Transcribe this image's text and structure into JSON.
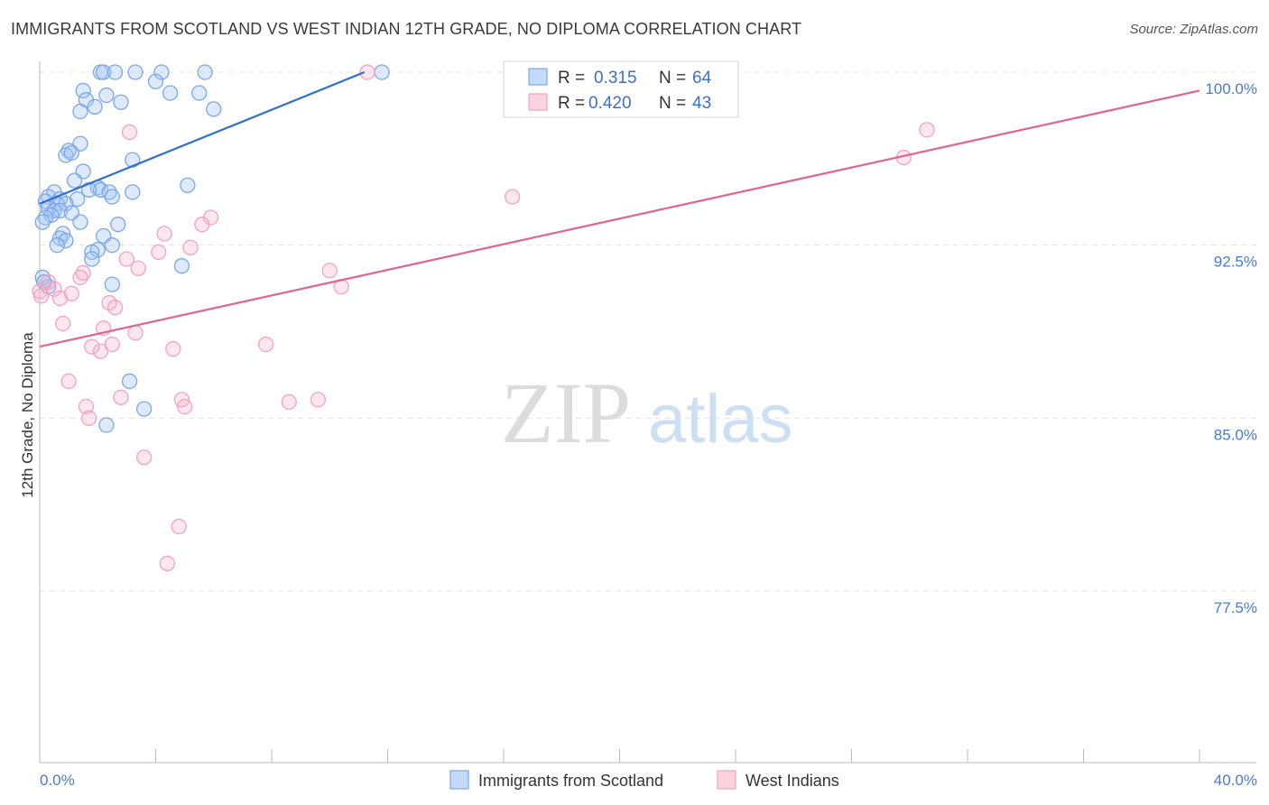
{
  "title": "IMMIGRANTS FROM SCOTLAND VS WEST INDIAN 12TH GRADE, NO DIPLOMA CORRELATION CHART",
  "source": "Source: ZipAtlas.com",
  "watermark": {
    "zip": "ZIP",
    "atlas": "atlas"
  },
  "legend": {
    "rows": [
      {
        "r_label": "R =",
        "r_value": "0.315",
        "n_label": "N =",
        "n_value": "64"
      },
      {
        "r_label": "R =",
        "r_value": "0.420",
        "n_label": "N =",
        "n_value": "43"
      }
    ]
  },
  "chart_data": {
    "type": "scatter",
    "xlabel": "",
    "ylabel": "12th Grade, No Diploma",
    "x_tick_labels": [
      "0.0%",
      "40.0%"
    ],
    "y_tick_labels": [
      "100.0%",
      "92.5%",
      "85.0%",
      "77.5%"
    ],
    "y_ticks": [
      100.0,
      92.5,
      85.0,
      77.5
    ],
    "xlim": [
      0,
      40
    ],
    "ylim": [
      70.5,
      100.5
    ],
    "grid": true,
    "legend_position": "bottom",
    "series": [
      {
        "name": "Immigrants from Scotland",
        "color": "#7aa8e8",
        "line_color": "#2f6fd0",
        "trend": {
          "x": [
            0.0,
            11.2
          ],
          "y": [
            94.3,
            100.0
          ]
        },
        "points": [
          {
            "x": 2.1,
            "y": 100.0
          },
          {
            "x": 2.2,
            "y": 100.0
          },
          {
            "x": 2.6,
            "y": 100.0
          },
          {
            "x": 3.3,
            "y": 100.0
          },
          {
            "x": 4.2,
            "y": 100.0
          },
          {
            "x": 5.7,
            "y": 100.0
          },
          {
            "x": 11.8,
            "y": 100.0
          },
          {
            "x": 4.0,
            "y": 99.6
          },
          {
            "x": 1.5,
            "y": 99.2
          },
          {
            "x": 4.5,
            "y": 99.1
          },
          {
            "x": 5.5,
            "y": 99.1
          },
          {
            "x": 2.3,
            "y": 99.0
          },
          {
            "x": 1.6,
            "y": 98.8
          },
          {
            "x": 2.8,
            "y": 98.7
          },
          {
            "x": 1.9,
            "y": 98.5
          },
          {
            "x": 1.4,
            "y": 98.3
          },
          {
            "x": 6.0,
            "y": 98.4
          },
          {
            "x": 1.4,
            "y": 96.9
          },
          {
            "x": 1.0,
            "y": 96.6
          },
          {
            "x": 0.9,
            "y": 96.4
          },
          {
            "x": 1.1,
            "y": 96.5
          },
          {
            "x": 3.2,
            "y": 96.2
          },
          {
            "x": 1.5,
            "y": 95.7
          },
          {
            "x": 1.2,
            "y": 95.3
          },
          {
            "x": 5.1,
            "y": 95.1
          },
          {
            "x": 2.0,
            "y": 95.0
          },
          {
            "x": 2.1,
            "y": 94.9
          },
          {
            "x": 1.7,
            "y": 94.9
          },
          {
            "x": 2.4,
            "y": 94.8
          },
          {
            "x": 3.2,
            "y": 94.8
          },
          {
            "x": 0.5,
            "y": 94.8
          },
          {
            "x": 0.3,
            "y": 94.6
          },
          {
            "x": 0.7,
            "y": 94.5
          },
          {
            "x": 1.3,
            "y": 94.5
          },
          {
            "x": 2.5,
            "y": 94.6
          },
          {
            "x": 0.2,
            "y": 94.4
          },
          {
            "x": 0.6,
            "y": 94.3
          },
          {
            "x": 0.9,
            "y": 94.3
          },
          {
            "x": 0.3,
            "y": 94.1
          },
          {
            "x": 0.5,
            "y": 94.0
          },
          {
            "x": 0.7,
            "y": 94.0
          },
          {
            "x": 0.4,
            "y": 93.8
          },
          {
            "x": 1.1,
            "y": 93.9
          },
          {
            "x": 0.2,
            "y": 93.7
          },
          {
            "x": 1.4,
            "y": 93.5
          },
          {
            "x": 0.1,
            "y": 93.5
          },
          {
            "x": 2.7,
            "y": 93.4
          },
          {
            "x": 0.8,
            "y": 93.0
          },
          {
            "x": 0.7,
            "y": 92.8
          },
          {
            "x": 2.2,
            "y": 92.9
          },
          {
            "x": 0.9,
            "y": 92.7
          },
          {
            "x": 2.5,
            "y": 92.5
          },
          {
            "x": 0.6,
            "y": 92.5
          },
          {
            "x": 2.0,
            "y": 92.3
          },
          {
            "x": 1.8,
            "y": 92.2
          },
          {
            "x": 1.8,
            "y": 91.9
          },
          {
            "x": 4.9,
            "y": 91.6
          },
          {
            "x": 2.5,
            "y": 90.8
          },
          {
            "x": 0.3,
            "y": 90.7
          },
          {
            "x": 3.1,
            "y": 86.6
          },
          {
            "x": 3.6,
            "y": 85.4
          },
          {
            "x": 2.3,
            "y": 84.7
          },
          {
            "x": 0.1,
            "y": 91.1
          },
          {
            "x": 0.15,
            "y": 90.9
          }
        ]
      },
      {
        "name": "West Indians",
        "color": "#f3a3bd",
        "line_color": "#e0648f",
        "trend": {
          "x": [
            0.0,
            40.0
          ],
          "y": [
            88.1,
            99.2
          ]
        },
        "points": [
          {
            "x": 11.3,
            "y": 100.0
          },
          {
            "x": 30.6,
            "y": 97.5
          },
          {
            "x": 3.1,
            "y": 97.4
          },
          {
            "x": 29.8,
            "y": 96.3
          },
          {
            "x": 16.3,
            "y": 94.6
          },
          {
            "x": 5.9,
            "y": 93.7
          },
          {
            "x": 5.6,
            "y": 93.4
          },
          {
            "x": 4.3,
            "y": 93.0
          },
          {
            "x": 5.2,
            "y": 92.4
          },
          {
            "x": 4.1,
            "y": 92.2
          },
          {
            "x": 3.0,
            "y": 91.9
          },
          {
            "x": 3.4,
            "y": 91.5
          },
          {
            "x": 10.0,
            "y": 91.4
          },
          {
            "x": 1.5,
            "y": 91.3
          },
          {
            "x": 1.4,
            "y": 91.1
          },
          {
            "x": 0.3,
            "y": 90.9
          },
          {
            "x": 10.4,
            "y": 90.7
          },
          {
            "x": 0.5,
            "y": 90.6
          },
          {
            "x": 0.0,
            "y": 90.5
          },
          {
            "x": 1.1,
            "y": 90.4
          },
          {
            "x": 0.7,
            "y": 90.2
          },
          {
            "x": 2.4,
            "y": 90.0
          },
          {
            "x": 2.6,
            "y": 89.8
          },
          {
            "x": 0.8,
            "y": 89.1
          },
          {
            "x": 2.2,
            "y": 88.9
          },
          {
            "x": 3.3,
            "y": 88.7
          },
          {
            "x": 2.5,
            "y": 88.2
          },
          {
            "x": 7.8,
            "y": 88.2
          },
          {
            "x": 1.8,
            "y": 88.1
          },
          {
            "x": 4.6,
            "y": 88.0
          },
          {
            "x": 2.1,
            "y": 87.9
          },
          {
            "x": 1.0,
            "y": 86.6
          },
          {
            "x": 2.8,
            "y": 85.9
          },
          {
            "x": 4.9,
            "y": 85.8
          },
          {
            "x": 9.6,
            "y": 85.8
          },
          {
            "x": 8.6,
            "y": 85.7
          },
          {
            "x": 1.6,
            "y": 85.5
          },
          {
            "x": 5.0,
            "y": 85.5
          },
          {
            "x": 1.7,
            "y": 85.0
          },
          {
            "x": 3.6,
            "y": 83.3
          },
          {
            "x": 4.8,
            "y": 80.3
          },
          {
            "x": 4.4,
            "y": 78.7
          },
          {
            "x": 0.05,
            "y": 90.3
          }
        ]
      }
    ]
  }
}
